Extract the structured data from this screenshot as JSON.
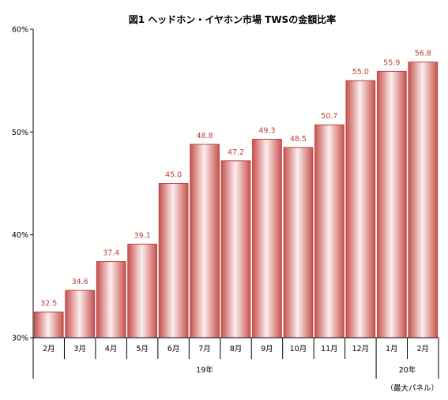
{
  "chart_data": {
    "type": "bar",
    "title": "図1 ヘッドホン・イヤホン市場 TWSの金額比率",
    "categories": [
      "2月",
      "3月",
      "4月",
      "5月",
      "6月",
      "7月",
      "8月",
      "9月",
      "10月",
      "11月",
      "12月",
      "1月",
      "2月"
    ],
    "values": [
      32.5,
      34.6,
      37.4,
      39.1,
      45.0,
      48.8,
      47.2,
      49.3,
      48.5,
      50.7,
      55.0,
      55.9,
      56.8
    ],
    "value_labels": [
      "32.5",
      "34.6",
      "37.4",
      "39.1",
      "45.0",
      "48.8",
      "47.2",
      "49.3",
      "48.5",
      "50.7",
      "55.0",
      "55.9",
      "56.8"
    ],
    "year_groups": [
      {
        "label": "19年",
        "count": 11
      },
      {
        "label": "20年",
        "count": 2
      }
    ],
    "ylim": [
      30,
      60
    ],
    "yticks": [
      30,
      40,
      50,
      60
    ],
    "ytick_labels": [
      "30%",
      "40%",
      "50%",
      "60%"
    ],
    "grid": false,
    "xlabel": "",
    "ylabel": "",
    "colors": {
      "bar_edge": "#b84440",
      "bar_side": "#c8524e",
      "bar_center": "#fbeeee",
      "label": "#c0403c"
    }
  },
  "source_note": "（最大パネル）"
}
